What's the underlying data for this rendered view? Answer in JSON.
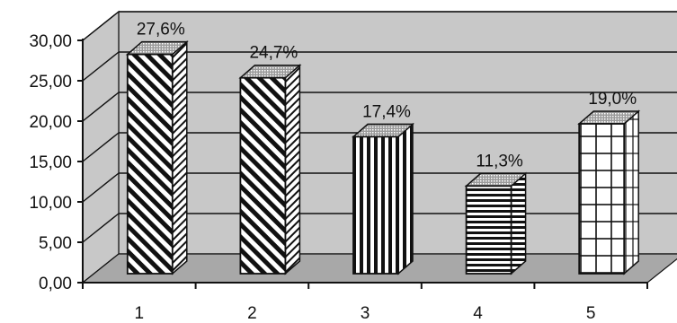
{
  "chart_data": {
    "type": "bar",
    "style": "3d",
    "categories": [
      "1",
      "2",
      "3",
      "4",
      "5"
    ],
    "values": [
      27.6,
      24.7,
      17.4,
      11.3,
      19.0
    ],
    "data_labels": [
      "27,6%",
      "24,7%",
      "17,4%",
      "11,3%",
      "19,0%"
    ],
    "y_tick_labels": [
      "0,00",
      "5,00",
      "10,00",
      "15,00",
      "20,00",
      "25,00",
      "30,00"
    ],
    "ylim": [
      0,
      30
    ],
    "grid": true,
    "legend": "none",
    "title": "",
    "xlabel": "",
    "ylabel": "",
    "bar_patterns": [
      "diagonal-stripes",
      "diagonal-stripes",
      "vertical-stripes",
      "horizontal-stripes",
      "grid"
    ],
    "colors": {
      "wall": "#c8c8c8",
      "floor": "#a8a8a8",
      "grid": "#111111",
      "ink": "#111111",
      "bar_bg": "#ffffff"
    }
  }
}
